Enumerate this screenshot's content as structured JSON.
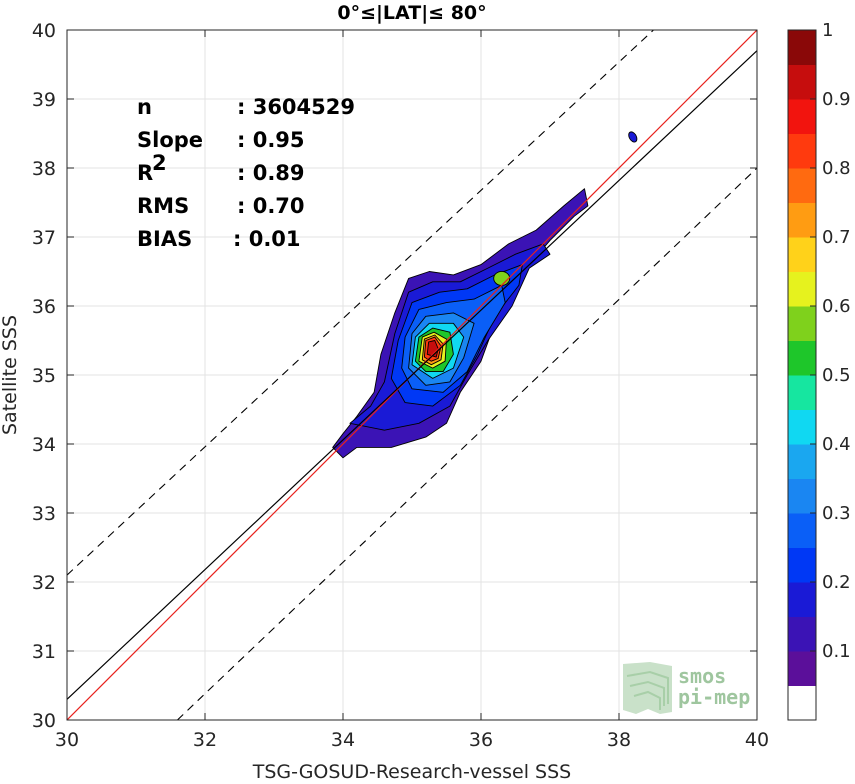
{
  "chart_data": {
    "type": "heatmap",
    "title": "0°≤|LAT|≤ 80°",
    "xlabel": "TSG-GOSUD-Research-vessel SSS",
    "ylabel": "Satellite SSS",
    "xlim": [
      30,
      40
    ],
    "ylim": [
      30,
      40
    ],
    "x_ticks": [
      30,
      32,
      34,
      36,
      38,
      40
    ],
    "y_ticks": [
      30,
      31,
      32,
      33,
      34,
      35,
      36,
      37,
      38,
      39,
      40
    ],
    "grid": true,
    "density_peak": {
      "x": 35.3,
      "y": 35.4
    },
    "secondary_peak": {
      "x": 36.3,
      "y": 36.4
    },
    "outlier_blob": {
      "x": 38.2,
      "y": 38.45
    },
    "lines": {
      "identity": {
        "slope": 1,
        "intercept": 0,
        "color": "#e8211d"
      },
      "fit": {
        "x": [
          30,
          40
        ],
        "y": [
          30.3,
          39.7
        ],
        "color": "#000000"
      },
      "upper_bound": {
        "x": [
          30,
          38.5
        ],
        "y": [
          32.1,
          40.0
        ],
        "style": "dashed",
        "color": "#000000"
      },
      "lower_bound": {
        "x": [
          31.6,
          40
        ],
        "y": [
          30.0,
          38.0
        ],
        "style": "dashed",
        "color": "#000000"
      }
    },
    "stats": [
      {
        "key": "n",
        "value": ": 3604529"
      },
      {
        "key": "Slope",
        "value": ": 0.95"
      },
      {
        "key": "R",
        "sup": "2",
        "value": ": 0.89"
      },
      {
        "key": "RMS",
        "value": ": 0.70"
      },
      {
        "key": "BIAS",
        "value": ": 0.01"
      }
    ],
    "colorbar": {
      "range": [
        0,
        1
      ],
      "ticks": [
        0.1,
        0.2,
        0.3,
        0.4,
        0.5,
        0.6,
        0.7,
        0.8,
        0.9,
        1
      ],
      "tick_labels": [
        "0.1",
        "0.2",
        "0.3",
        "0.4",
        "0.5",
        "0.6",
        "0.7",
        "0.8",
        "0.9",
        "1"
      ],
      "colors": [
        "#ffffff",
        "#5b0f9a",
        "#3b13b5",
        "#1a1ad6",
        "#0038f5",
        "#0a5ff7",
        "#1a86f2",
        "#1aa7f0",
        "#10d8f2",
        "#16e6a0",
        "#1ec62a",
        "#7fd11c",
        "#e6f21e",
        "#ffd21a",
        "#ff9c12",
        "#ff6a10",
        "#ff3a0e",
        "#f2140e",
        "#c60d0d",
        "#8a0808"
      ]
    }
  },
  "logo": {
    "line1": "smos",
    "line2": "pi-mep"
  }
}
